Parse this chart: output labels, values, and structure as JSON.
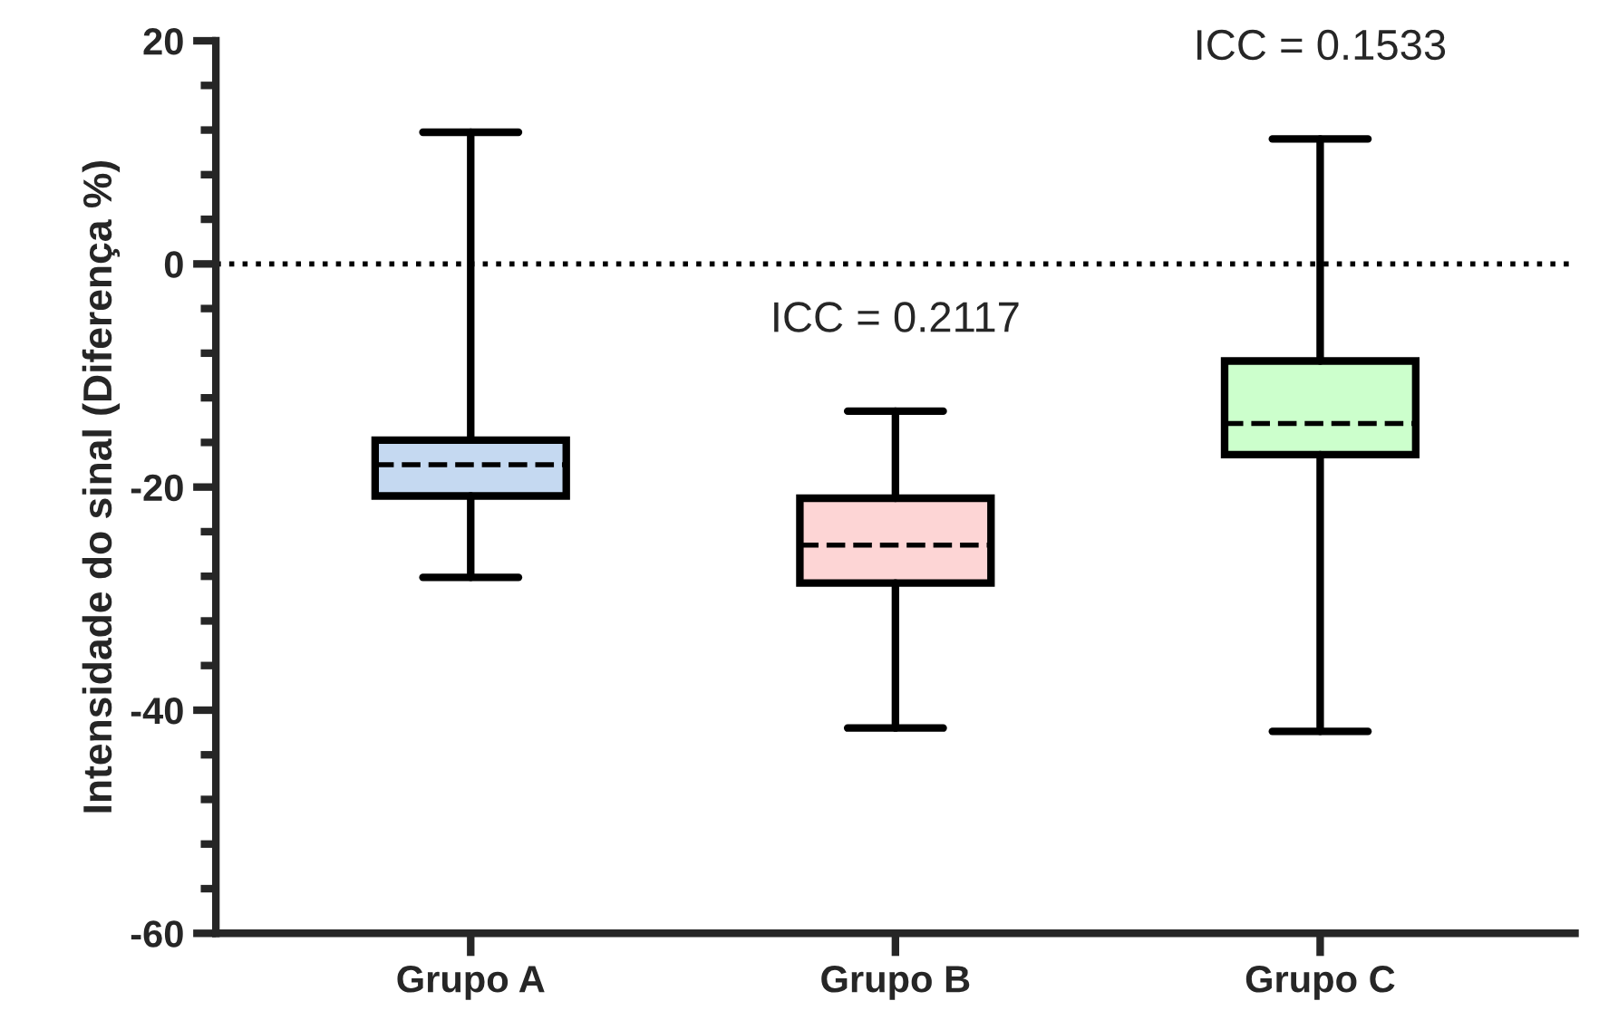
{
  "chart_data": {
    "type": "box",
    "ylabel": "Intensidade do sinal (Diferença %)",
    "categories": [
      "Grupo A",
      "Grupo B",
      "Grupo C"
    ],
    "colors": [
      "#c5d9f1",
      "#fdd5d5",
      "#ccffcc"
    ],
    "boxes": [
      {
        "low": -28.1,
        "q1": -20.8,
        "median": -18.0,
        "q3": -15.8,
        "high": 11.8
      },
      {
        "low": -41.6,
        "q1": -28.6,
        "median": -25.2,
        "q3": -21.0,
        "high": -13.2
      },
      {
        "low": -41.9,
        "q1": -17.1,
        "median": -14.3,
        "q3": -8.7,
        "high": 11.2
      }
    ],
    "ylim": [
      -60,
      20
    ],
    "yticks": [
      -60,
      {
        "value": -56,
        "label": null
      },
      {
        "value": -52,
        "label": null
      },
      {
        "value": -48,
        "label": null
      },
      {
        "value": -44,
        "label": null
      },
      -40,
      {
        "value": -36,
        "label": null
      },
      {
        "value": -32,
        "label": null
      },
      {
        "value": -28,
        "label": null
      },
      {
        "value": -24,
        "label": null
      },
      -20,
      {
        "value": -16,
        "label": null
      },
      {
        "value": -12,
        "label": null
      },
      {
        "value": -8,
        "label": null
      },
      {
        "value": -4,
        "label": null
      },
      0,
      {
        "value": 4,
        "label": null
      },
      {
        "value": 8,
        "label": null
      },
      {
        "value": 12,
        "label": null
      },
      {
        "value": 16,
        "label": null
      },
      20
    ],
    "ref_lines": [
      {
        "axis": "y",
        "value": 0,
        "label": null,
        "color": "#000000",
        "line_style": "dotted"
      }
    ],
    "annotations": [
      "ICC = 0.2117",
      "ICC = 0.1533"
    ],
    "grid": false,
    "legend": false
  }
}
